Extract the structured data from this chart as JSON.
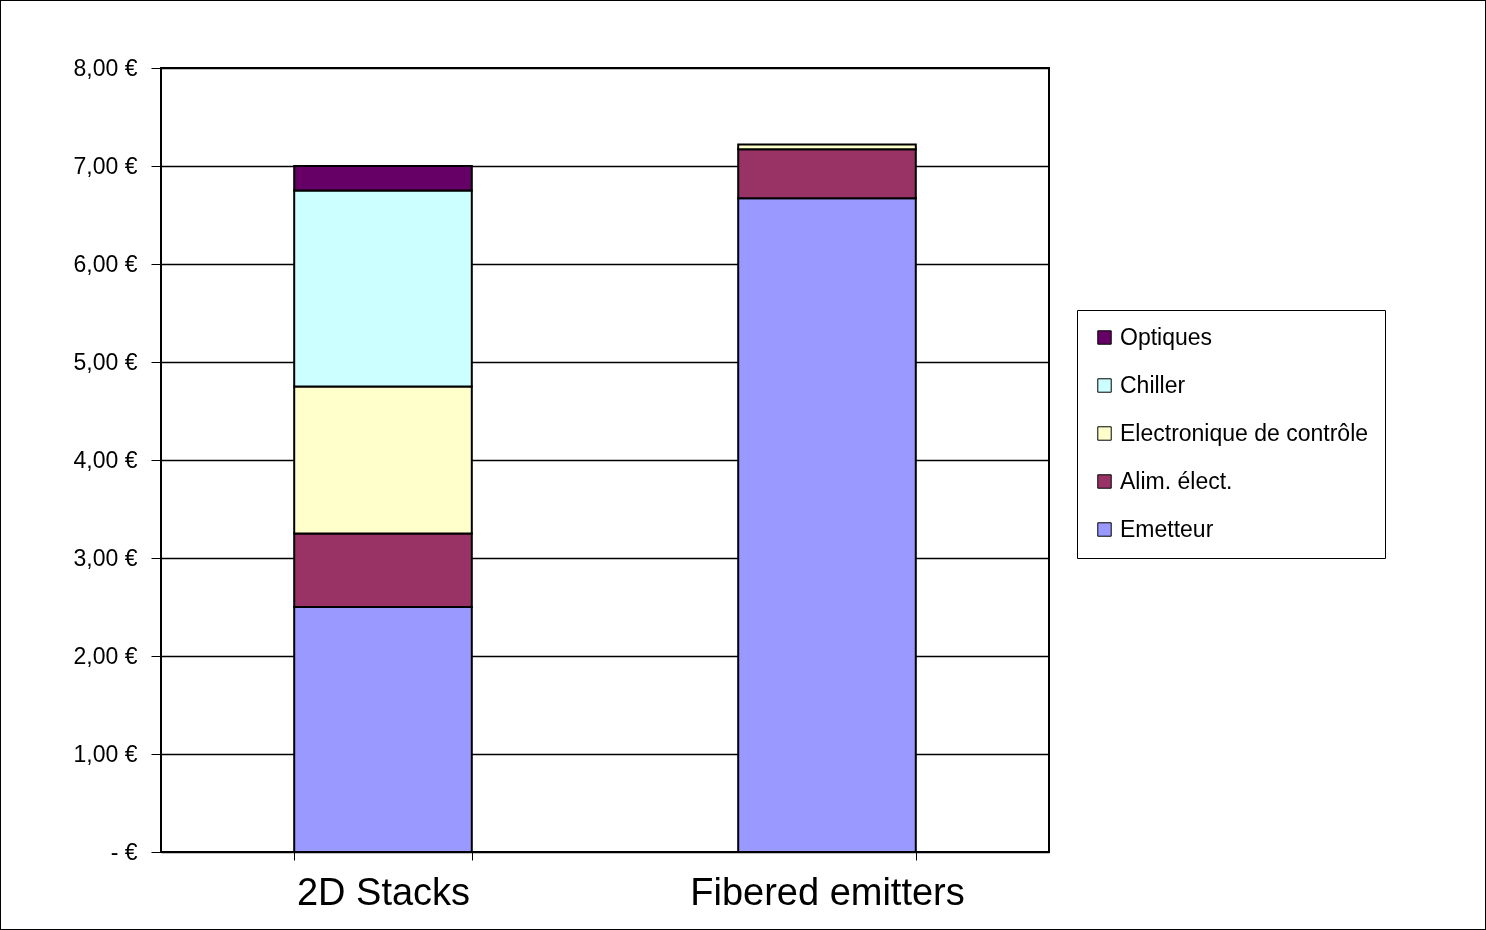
{
  "chart_data": {
    "type": "bar",
    "stacked": true,
    "categories": [
      "2D Stacks",
      "Fibered emitters"
    ],
    "series": [
      {
        "name": "Emetteur",
        "color": "#9999ff",
        "values": [
          2.5,
          6.67
        ]
      },
      {
        "name": "Alim. élect.",
        "color": "#993366",
        "values": [
          0.75,
          0.5
        ]
      },
      {
        "name": "Electronique de contrôle",
        "color": "#ffffcc",
        "values": [
          1.5,
          0.05
        ]
      },
      {
        "name": "Chiller",
        "color": "#ccffff",
        "values": [
          2.0,
          null
        ]
      },
      {
        "name": "Optiques",
        "color": "#660066",
        "values": [
          0.25,
          null
        ]
      }
    ],
    "ylim": [
      0,
      8
    ],
    "yticks": [
      {
        "value": 0,
        "label": "-  €"
      },
      {
        "value": 1,
        "label": "1,00 €"
      },
      {
        "value": 2,
        "label": "2,00 €"
      },
      {
        "value": 3,
        "label": "3,00 €"
      },
      {
        "value": 4,
        "label": "4,00 €"
      },
      {
        "value": 5,
        "label": "5,00 €"
      },
      {
        "value": 6,
        "label": "6,00 €"
      },
      {
        "value": 7,
        "label": "7,00 €"
      },
      {
        "value": 8,
        "label": "8,00 €"
      }
    ],
    "grid": "y",
    "legend": "right"
  }
}
